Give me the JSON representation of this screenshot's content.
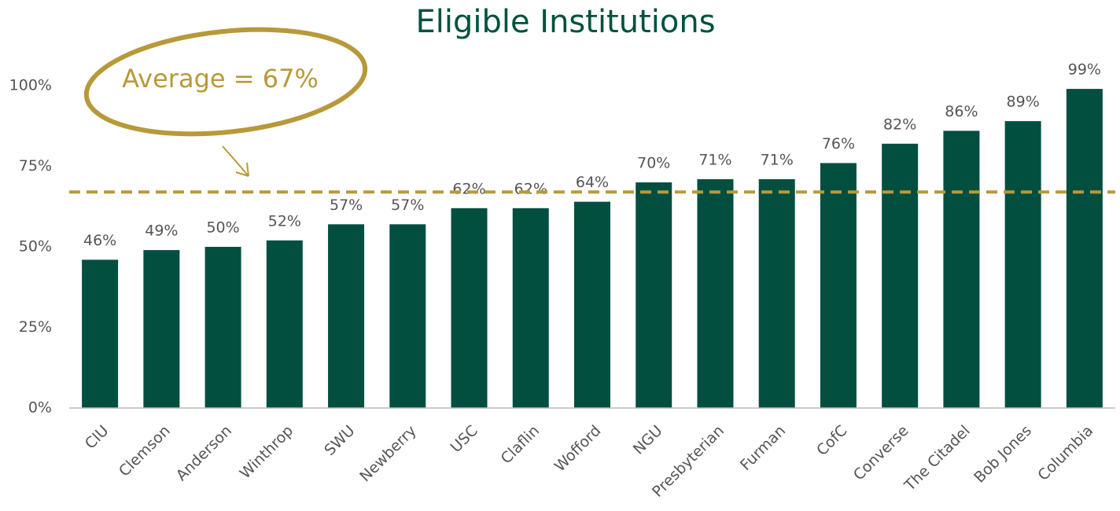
{
  "chart_data": {
    "type": "bar",
    "title": "Eligible Institutions",
    "categories": [
      "CIU",
      "Clemson",
      "Anderson",
      "Winthrop",
      "SWU",
      "Newberry",
      "USC",
      "Claflin",
      "Wofford",
      "NGU",
      "Presbyterian",
      "Furman",
      "CofC",
      "Converse",
      "The Citadel",
      "Bob Jones",
      "Columbia"
    ],
    "values": [
      46,
      49,
      50,
      52,
      57,
      57,
      62,
      62,
      64,
      70,
      71,
      71,
      76,
      82,
      86,
      89,
      99
    ],
    "value_labels": [
      "46%",
      "49%",
      "50%",
      "52%",
      "57%",
      "57%",
      "62%",
      "62%",
      "64%",
      "70%",
      "71%",
      "71%",
      "76%",
      "82%",
      "86%",
      "89%",
      "99%"
    ],
    "color": "#024f40",
    "ylim": [
      0,
      110
    ],
    "yticks": [
      {
        "value": 0,
        "label": "0%"
      },
      {
        "value": 25,
        "label": "25%"
      },
      {
        "value": 50,
        "label": "50%"
      },
      {
        "value": 75,
        "label": "75%"
      },
      {
        "value": 100,
        "label": "100%"
      }
    ],
    "grid": false,
    "average": {
      "value": 67,
      "label": "Average = 67%",
      "color": "#b8993a"
    }
  }
}
